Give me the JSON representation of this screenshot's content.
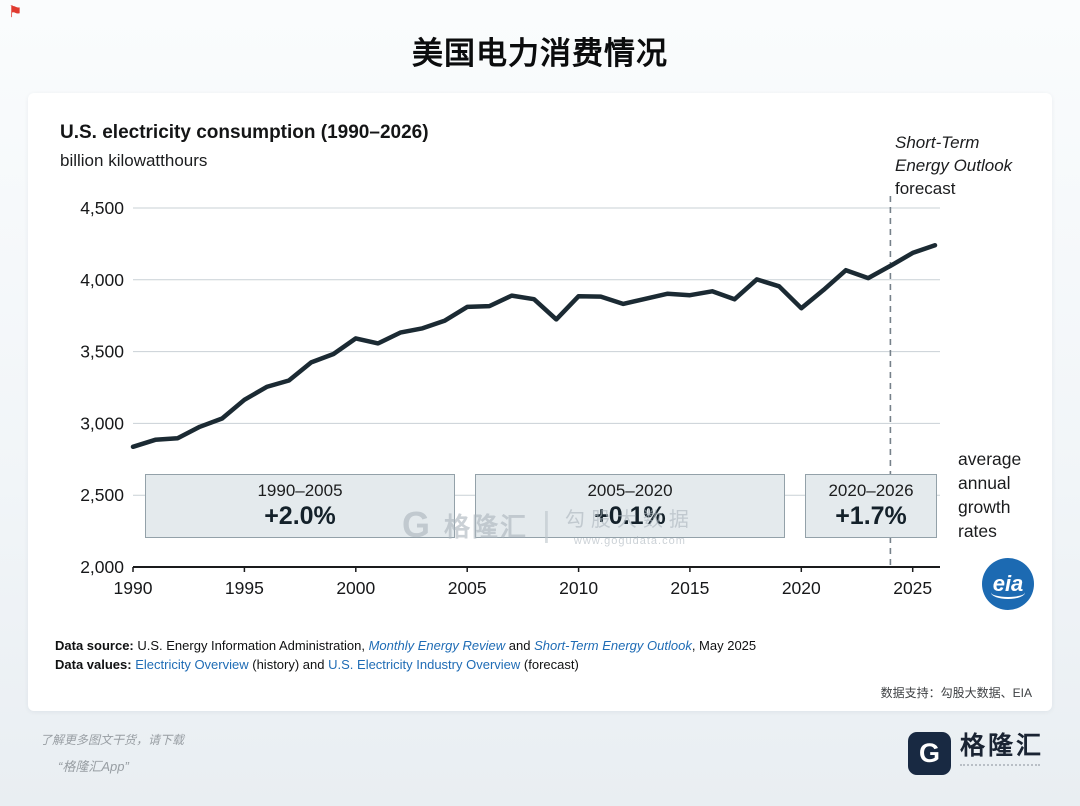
{
  "page": {
    "title": "美国电力消费情况",
    "corner_icon": "⚑"
  },
  "chart": {
    "title": "U.S. electricity consumption (1990–2026)",
    "subtitle": "billion kilowatthours",
    "forecast_note": {
      "line1": "Short-Term",
      "line2": "Energy Outlook",
      "line3": "forecast"
    },
    "growth_boxes": [
      {
        "period": "1990–2005",
        "rate": "+2.0%"
      },
      {
        "period": "2005–2020",
        "rate": "+0.1%"
      },
      {
        "period": "2020–2026",
        "rate": "+1.7%"
      }
    ],
    "growth_note_lines": [
      "average",
      "annual",
      "growth",
      "rates"
    ],
    "eia_logo_text": "eia"
  },
  "chart_data": {
    "type": "line",
    "title": "U.S. electricity consumption (1990–2026)",
    "ylabel": "billion kilowatthours",
    "x": [
      1990,
      1991,
      1992,
      1993,
      1994,
      1995,
      1996,
      1997,
      1998,
      1999,
      2000,
      2001,
      2002,
      2003,
      2004,
      2005,
      2006,
      2007,
      2008,
      2009,
      2010,
      2011,
      2012,
      2013,
      2014,
      2015,
      2016,
      2017,
      2018,
      2019,
      2020,
      2021,
      2022,
      2023,
      2024,
      2025,
      2026
    ],
    "values": [
      2837,
      2886,
      2897,
      2976,
      3034,
      3164,
      3254,
      3299,
      3425,
      3483,
      3592,
      3557,
      3632,
      3662,
      3716,
      3811,
      3817,
      3890,
      3865,
      3724,
      3886,
      3883,
      3832,
      3868,
      3903,
      3893,
      3920,
      3864,
      4003,
      3955,
      3802,
      3930,
      4067,
      4012,
      4097,
      4187,
      4240
    ],
    "ylim": [
      2000,
      4500
    ],
    "yticks": [
      2000,
      2500,
      3000,
      3500,
      4000,
      4500
    ],
    "xticks": [
      1990,
      1995,
      2000,
      2005,
      2010,
      2015,
      2020,
      2025
    ],
    "forecast_start_year": 2024,
    "forecast_label": "Short-Term Energy Outlook forecast",
    "line_color": "#1b2a33",
    "grid": true,
    "legend": "none",
    "annotations": [
      {
        "period": "1990–2005",
        "avg_annual_growth": "+2.0%"
      },
      {
        "period": "2005–2020",
        "avg_annual_growth": "+0.1%"
      },
      {
        "period": "2020–2026",
        "avg_annual_growth": "+1.7%"
      }
    ],
    "annotation_caption": "average annual growth rates"
  },
  "watermark": {
    "brand_g": "G",
    "brand": "格隆汇",
    "divider": "|",
    "partner": "勾股大数据",
    "url": "www.gogudata.com"
  },
  "footer": {
    "source": {
      "label": "Data source:",
      "text1": " U.S. Energy Information Administration, ",
      "link1": "Monthly Energy Review",
      "text2": " and ",
      "link2": "Short-Term Energy Outlook",
      "text3": ", May 2025"
    },
    "values": {
      "label": "Data values:",
      "text1": " ",
      "link1": "Electricity Overview",
      "text2": " (history) and ",
      "link2": "U.S. Electricity Industry Overview",
      "text3": " (forecast)"
    },
    "support": "数据支持：勾股大数据、EIA"
  },
  "bottom": {
    "promo_line1": "了解更多图文干货，请下载",
    "promo_line2": "“格隆汇App”",
    "logo_g": "G",
    "logo_text": "格隆汇"
  }
}
